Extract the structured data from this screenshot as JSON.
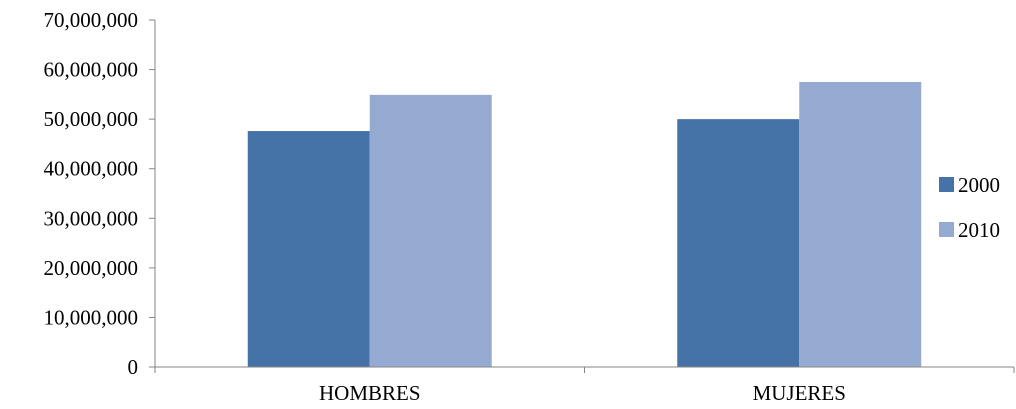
{
  "chart_data": {
    "type": "bar",
    "title": "",
    "xlabel": "",
    "ylabel": "",
    "categories": [
      "HOMBRES",
      "MUJERES"
    ],
    "series": [
      {
        "name": "2000",
        "color": "#4572A7",
        "values": [
          47600000,
          50000000
        ]
      },
      {
        "name": "2010",
        "color": "#95AAD0",
        "values": [
          54900000,
          57500000
        ]
      }
    ],
    "ylim": [
      0,
      70000000
    ],
    "yticks": [
      0,
      10000000,
      20000000,
      30000000,
      40000000,
      50000000,
      60000000,
      70000000
    ],
    "ytick_labels": [
      "0",
      "10,000,000",
      "20,000,000",
      "30,000,000",
      "40,000,000",
      "50,000,000",
      "60,000,000",
      "70,000,000"
    ],
    "grid": false,
    "legend_position": "right"
  }
}
